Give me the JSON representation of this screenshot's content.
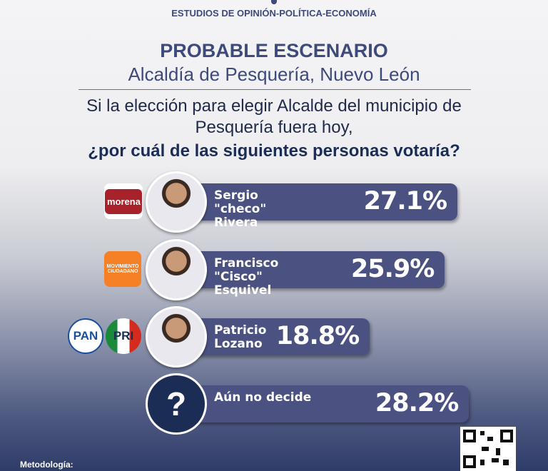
{
  "header": "ESTUDIOS DE OPINIÓN-POLÍTICA-ECONOMÍA",
  "chart_data": {
    "type": "hbar",
    "title": "PROBABLE ESCENARIO",
    "subtitle": "Alcaldía de Pesquería, Nuevo León",
    "question": [
      "Si la elección para elegir Alcalde del municipio de",
      "Pesquería fuera hoy,",
      "¿por cuál de las siguientes personas votaría?"
    ],
    "categories": [
      "Sergio \"checo\" Rivera",
      "Francisco \"Cisco\" Esquivel",
      "Patricio Lozano",
      "Aún no decide"
    ],
    "values": [
      27.1,
      25.9,
      18.8,
      28.2
    ],
    "value_labels": [
      "27.1%",
      "25.9%",
      "18.8%",
      "28.2%"
    ],
    "parties": [
      [
        "morena"
      ],
      [
        "MOVIMIENTO CIUDADANO"
      ],
      [
        "PAN",
        "PRI"
      ],
      []
    ],
    "undecided_icon": "?",
    "color": "#4b5282"
  },
  "footer": "Metodología:"
}
